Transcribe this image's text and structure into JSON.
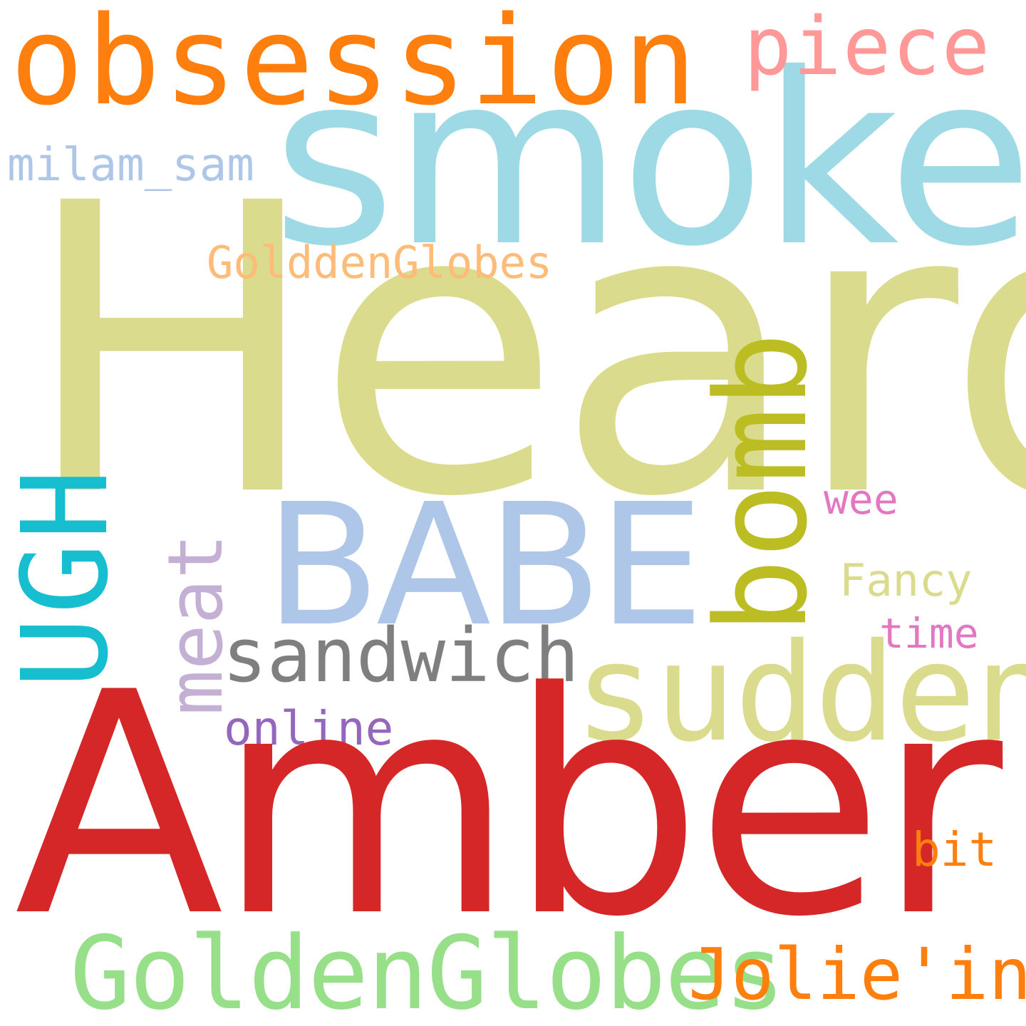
{
  "words": {
    "obsession": {
      "text": "obsession",
      "color": "#ff7f0e"
    },
    "piece": {
      "text": "piece",
      "color": "#ff9896"
    },
    "smoke": {
      "text": "smoke",
      "color": "#9edae5"
    },
    "milam_sam": {
      "text": "milam_sam",
      "color": "#aec7e8"
    },
    "heard": {
      "text": "Heard",
      "color": "#dbdb8d"
    },
    "golddenglobes": {
      "text": "GolddenGlobes",
      "color": "#ffbb78"
    },
    "babe": {
      "text": "BABE",
      "color": "#aec7e8"
    },
    "wee": {
      "text": "wee",
      "color": "#e377c2"
    },
    "ugh": {
      "text": "UGH",
      "color": "#17becf"
    },
    "meat": {
      "text": "meat",
      "color": "#c5b0d5"
    },
    "bomb": {
      "text": "bomb",
      "color": "#bcbd22"
    },
    "fancy": {
      "text": "Fancy",
      "color": "#dbdb8d"
    },
    "sandwich": {
      "text": "sandwich",
      "color": "#7f7f7f"
    },
    "time": {
      "text": "time",
      "color": "#e377c2"
    },
    "sudden": {
      "text": "sudden",
      "color": "#dbdb8d"
    },
    "online": {
      "text": "online",
      "color": "#9467bd"
    },
    "amber": {
      "text": "Amber",
      "color": "#d62728"
    },
    "bit": {
      "text": "bit",
      "color": "#ff7f0e"
    },
    "goldenglobes": {
      "text": "GoldenGlobes",
      "color": "#98df8a"
    },
    "jolieing": {
      "text": "Jolie'ing",
      "color": "#ff7f0e"
    }
  }
}
